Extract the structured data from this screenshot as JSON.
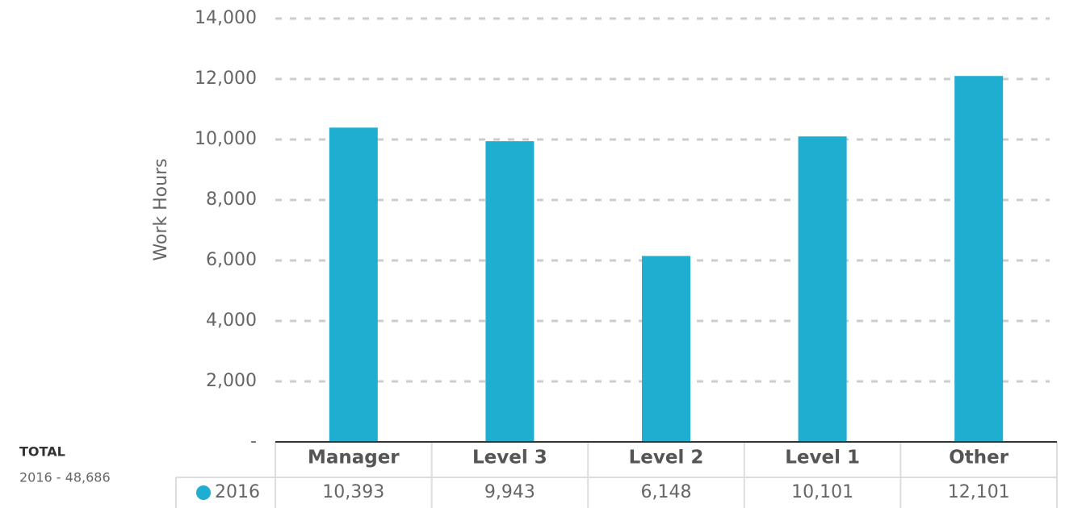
{
  "chart_data": {
    "type": "bar",
    "y_axis_label": "Work Hours",
    "categories": [
      "Manager",
      "Level 3",
      "Level 2",
      "Level 1",
      "Other"
    ],
    "series": [
      {
        "name": "2016",
        "color": "#1fadd0",
        "values": [
          10393,
          9943,
          6148,
          10101,
          12101
        ],
        "value_labels": [
          "10,393",
          "9,943",
          "6,148",
          "10,101",
          "12,101"
        ]
      }
    ],
    "ylim": [
      0,
      14000
    ],
    "yticks": [
      {
        "value": 0,
        "label": "-"
      },
      {
        "value": 2000,
        "label": "2,000"
      },
      {
        "value": 4000,
        "label": "4,000"
      },
      {
        "value": 6000,
        "label": "6,000"
      },
      {
        "value": 8000,
        "label": "8,000"
      },
      {
        "value": 10000,
        "label": "10,000"
      },
      {
        "value": 12000,
        "label": "12,000"
      },
      {
        "value": 14000,
        "label": "14,000"
      }
    ],
    "grid": true,
    "total": {
      "title": "TOTAL",
      "text": "2016 -  48,686"
    }
  }
}
